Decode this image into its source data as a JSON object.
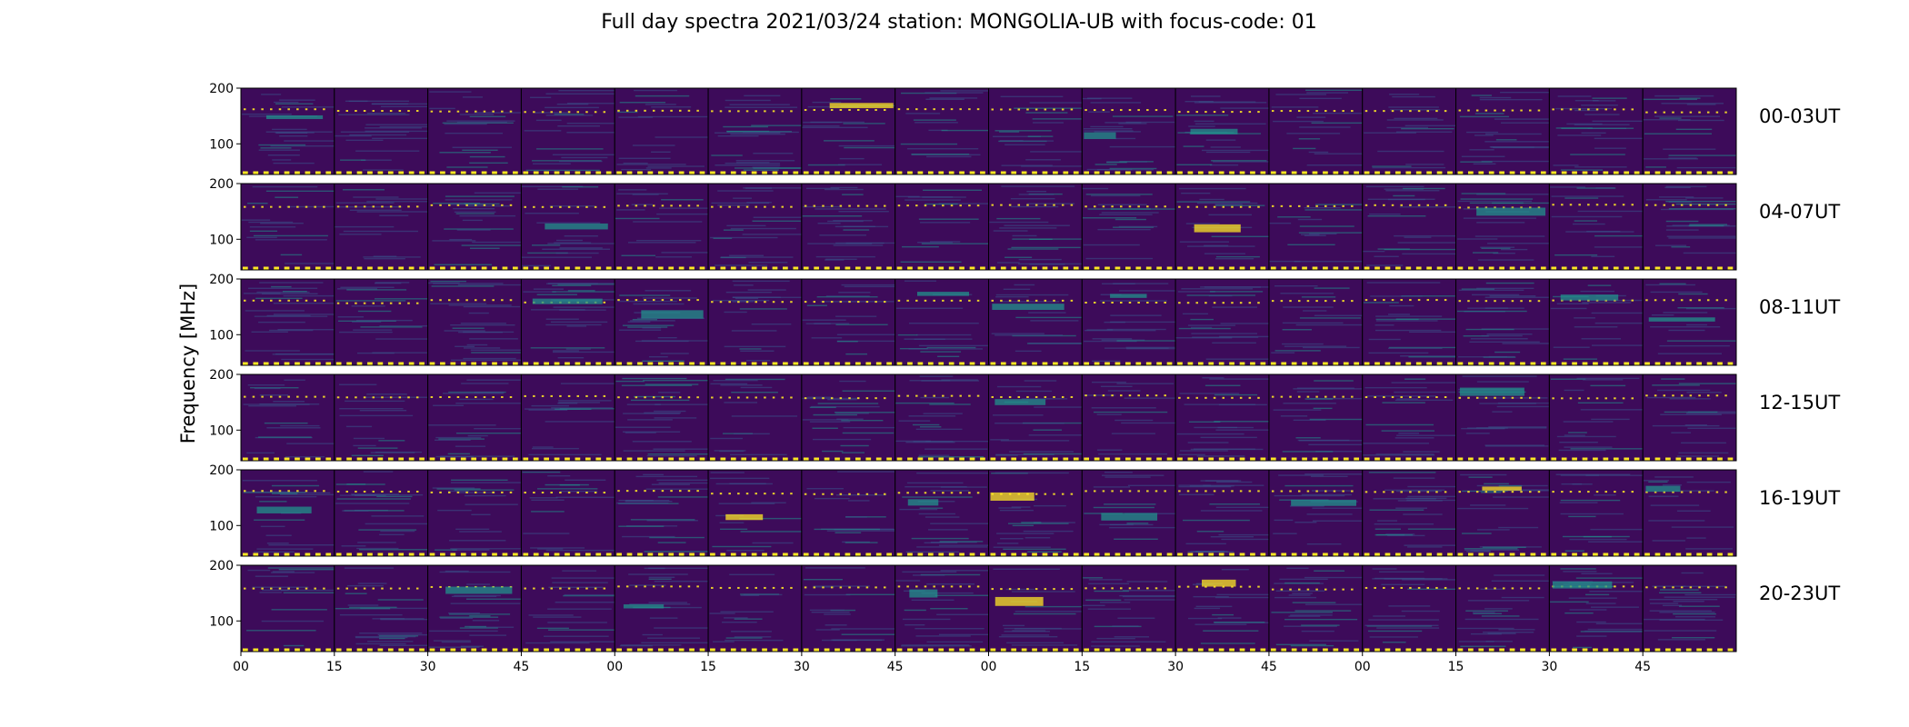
{
  "chart_data": {
    "type": "heatmap",
    "title": "Full day spectra 2021/03/24 station: MONGOLIA-UB with focus-code: 01",
    "ylabel": "Frequency [MHz]",
    "xlabel": "",
    "ylim": [
      45,
      200
    ],
    "y_ticks": [
      "200",
      "100"
    ],
    "x_ticks": [
      "00",
      "15",
      "30",
      "45",
      "00",
      "15",
      "30",
      "45",
      "00",
      "15",
      "30",
      "45",
      "00",
      "15",
      "30",
      "45"
    ],
    "rows": [
      {
        "label": "00-03UT"
      },
      {
        "label": "04-07UT"
      },
      {
        "label": "08-11UT"
      },
      {
        "label": "12-15UT"
      },
      {
        "label": "16-19UT"
      },
      {
        "label": "20-23UT"
      }
    ],
    "panels_per_row": 16,
    "panel_minutes": 15,
    "colormap": [
      "#440154",
      "#3b528b",
      "#21918c",
      "#5ec962",
      "#fde725"
    ],
    "background_color": "#3d0b5a",
    "marker_color": "#fde725",
    "intensity_scale": "relative, no colorbar"
  }
}
